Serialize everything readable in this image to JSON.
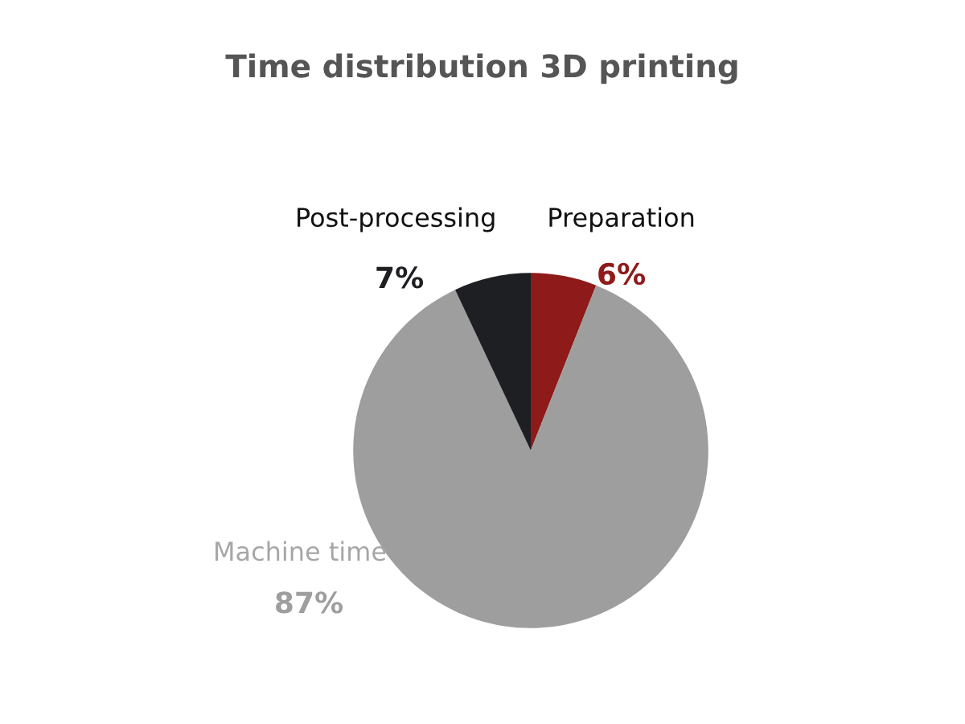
{
  "chart_data": {
    "type": "pie",
    "title": "Time distribution 3D printing",
    "categories": [
      "Preparation",
      "Machine time",
      "Post-processing"
    ],
    "values": [
      6,
      87,
      7
    ],
    "value_labels": [
      "6%",
      "87%",
      "7%"
    ],
    "colors": [
      "#8e1b19",
      "#9e9e9e",
      "#1e1f22"
    ]
  }
}
